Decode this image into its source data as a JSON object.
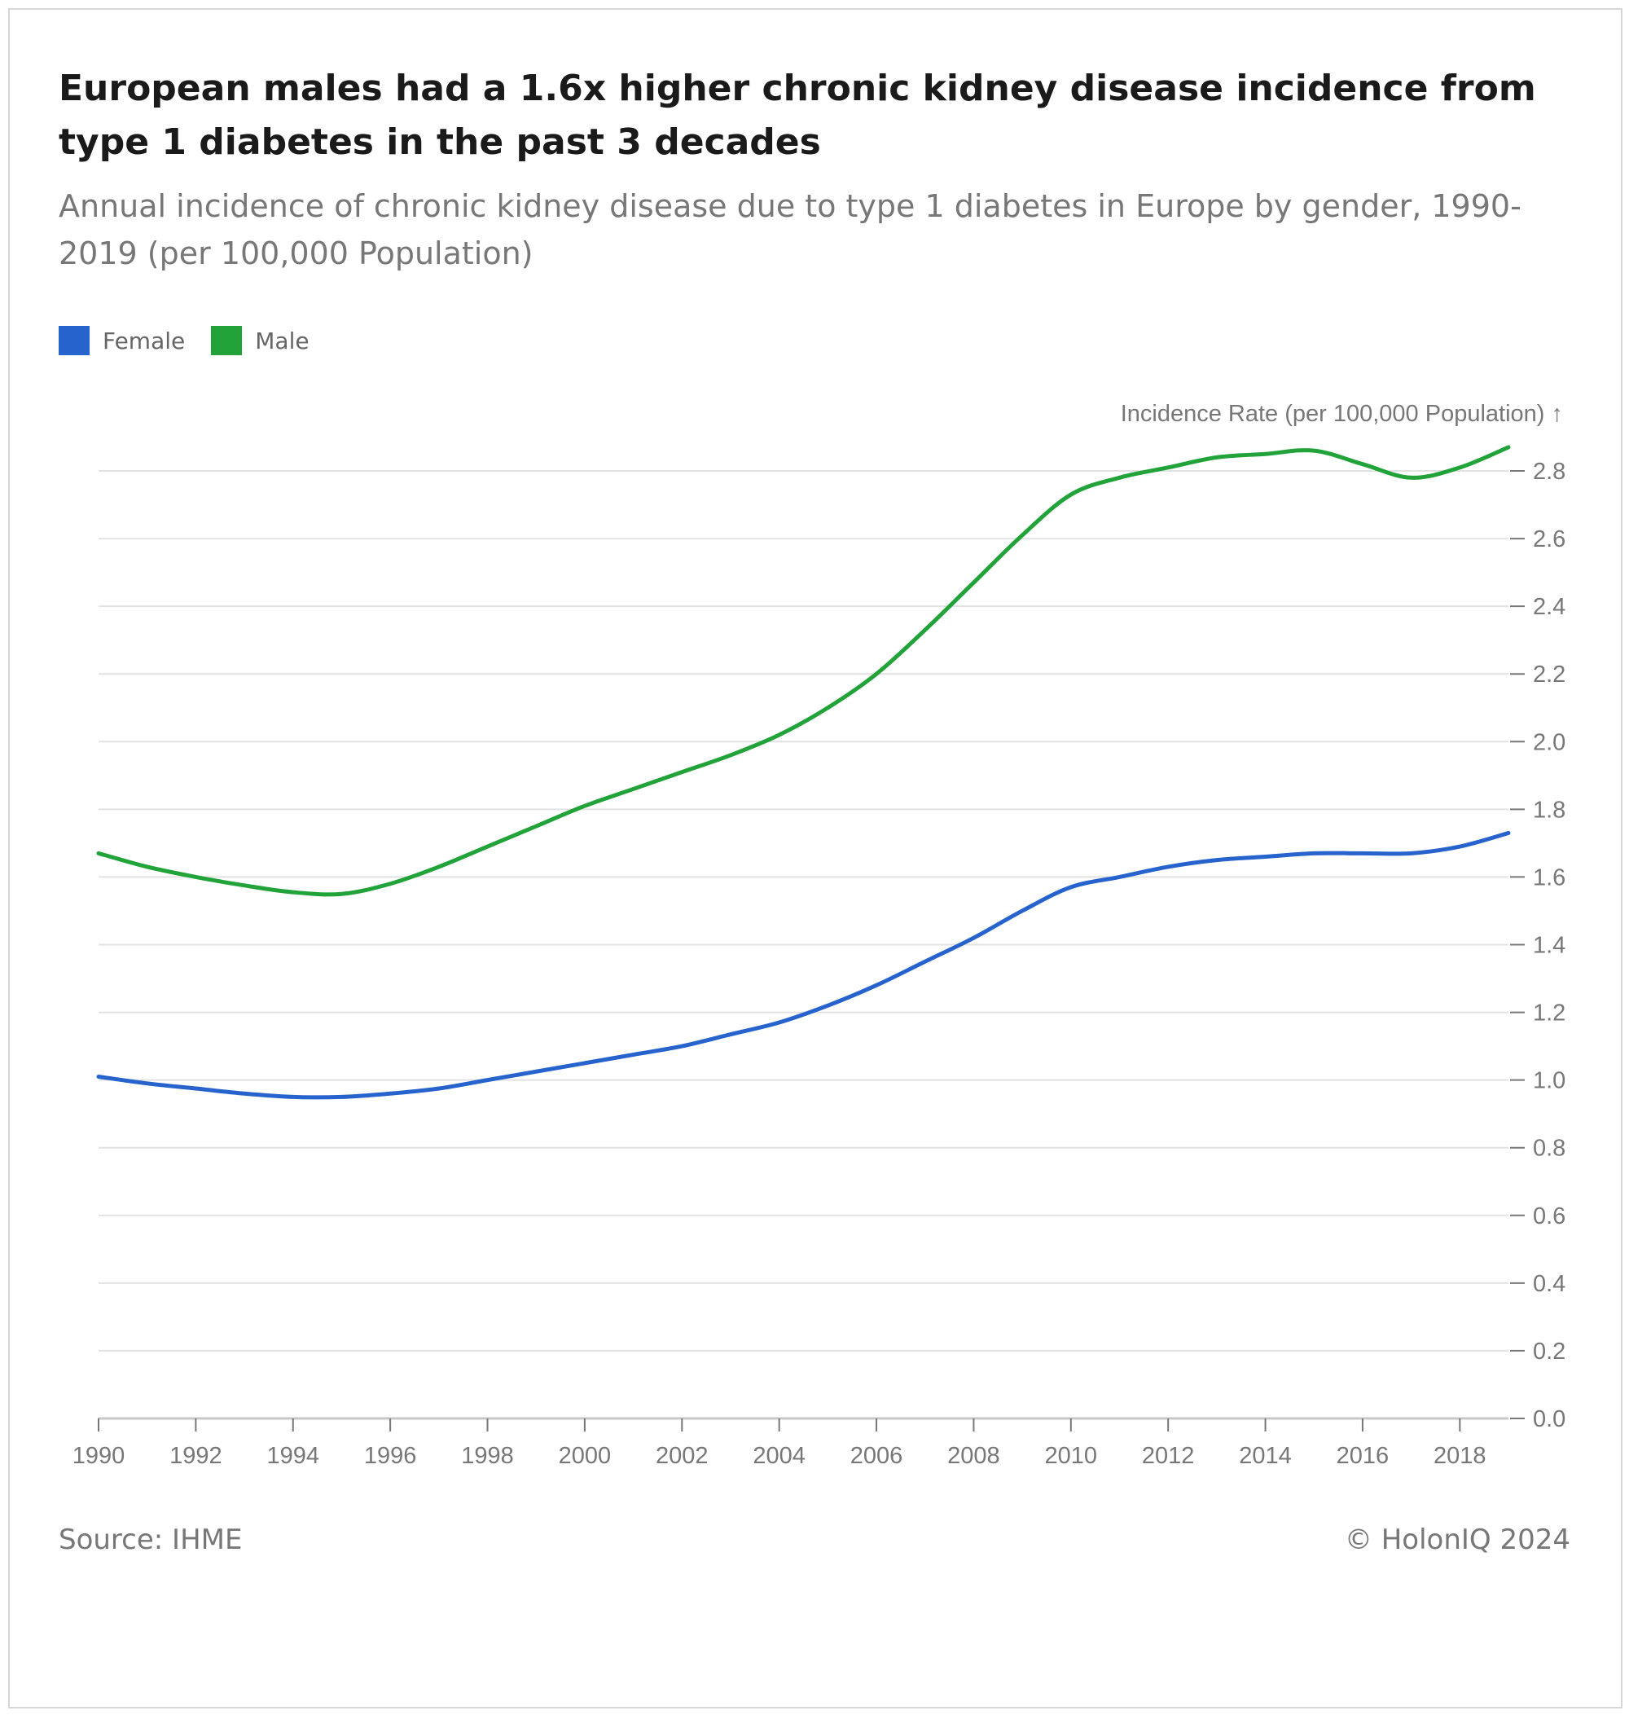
{
  "title": "European males had a 1.6x higher chronic kidney disease incidence from type 1 diabetes in the past 3 decades",
  "subtitle": "Annual incidence of chronic kidney disease due to type 1 diabetes in Europe by gender, 1990-2019 (per 100,000 Population)",
  "legend": [
    {
      "label": "Female",
      "color": "#2763cc"
    },
    {
      "label": "Male",
      "color": "#22a33a"
    }
  ],
  "footer": {
    "source": "Source: IHME",
    "copyright": "© HolonIQ 2024"
  },
  "chart_data": {
    "type": "line",
    "ylabel": "Incidence Rate (per 100,000 Population) ↑",
    "xlabel": "",
    "ylim": [
      0,
      2.8
    ],
    "yticks": [
      0.0,
      0.2,
      0.4,
      0.6,
      0.8,
      1.0,
      1.2,
      1.4,
      1.6,
      1.8,
      2.0,
      2.2,
      2.4,
      2.6,
      2.8
    ],
    "xlim": [
      1990,
      2019
    ],
    "xticks": [
      1990,
      1992,
      1994,
      1996,
      1998,
      2000,
      2002,
      2004,
      2006,
      2008,
      2010,
      2012,
      2014,
      2016,
      2018
    ],
    "grid": true,
    "legend_position": "top-left",
    "x": [
      1990,
      1991,
      1992,
      1993,
      1994,
      1995,
      1996,
      1997,
      1998,
      1999,
      2000,
      2001,
      2002,
      2003,
      2004,
      2005,
      2006,
      2007,
      2008,
      2009,
      2010,
      2011,
      2012,
      2013,
      2014,
      2015,
      2016,
      2017,
      2018,
      2019
    ],
    "series": [
      {
        "name": "Female",
        "color": "#2763cc",
        "values": [
          1.01,
          0.99,
          0.975,
          0.96,
          0.95,
          0.95,
          0.96,
          0.975,
          1.0,
          1.025,
          1.05,
          1.075,
          1.1,
          1.135,
          1.17,
          1.22,
          1.28,
          1.35,
          1.42,
          1.5,
          1.57,
          1.6,
          1.63,
          1.65,
          1.66,
          1.67,
          1.67,
          1.67,
          1.69,
          1.73
        ]
      },
      {
        "name": "Male",
        "color": "#22a33a",
        "values": [
          1.67,
          1.63,
          1.6,
          1.575,
          1.555,
          1.55,
          1.58,
          1.63,
          1.69,
          1.75,
          1.81,
          1.86,
          1.91,
          1.96,
          2.02,
          2.1,
          2.2,
          2.33,
          2.47,
          2.61,
          2.73,
          2.78,
          2.81,
          2.84,
          2.85,
          2.86,
          2.82,
          2.78,
          2.81,
          2.87
        ]
      }
    ]
  }
}
